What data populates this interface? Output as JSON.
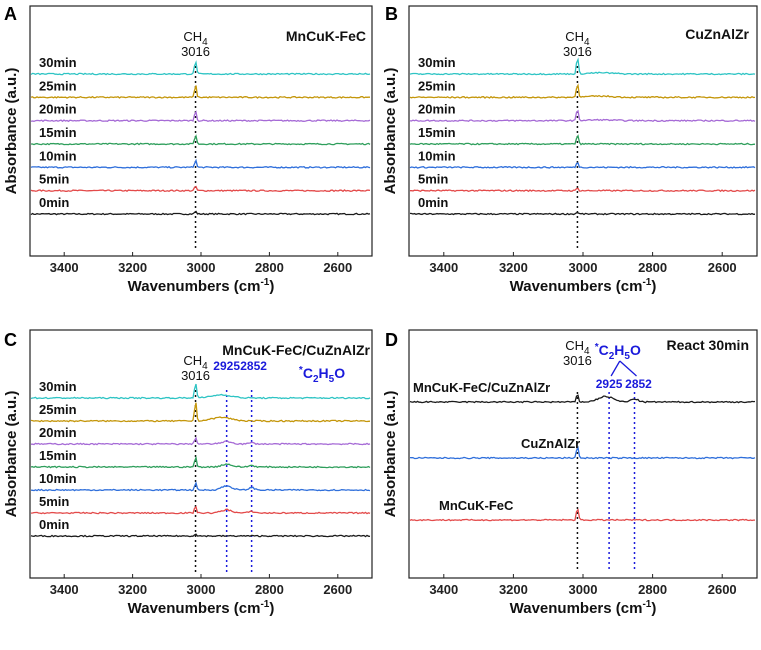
{
  "figure": {
    "panels_order": [
      "A",
      "B",
      "C",
      "D"
    ]
  },
  "chart_data": [
    {
      "panel": "A",
      "type": "line",
      "title": "MnCuK-FeC",
      "xlabel_main": "Wavenumbers (cm",
      "xlabel_sup": "-1",
      "xlabel_close": ")",
      "ylabel": "Absorbance (a.u.)",
      "xlim": [
        3500,
        2500
      ],
      "xticks": [
        "3400",
        "3200",
        "3000",
        "2800",
        "2600"
      ],
      "xtick_values": [
        3400,
        3200,
        3000,
        2800,
        2600
      ],
      "peak_label_main": "CH",
      "peak_label_sub": "4",
      "peak_label_value": "3016",
      "dotted_lines": [
        {
          "x": 3016,
          "color": "#111111"
        }
      ],
      "blue_labels": [],
      "species_label": null,
      "series": [
        {
          "name": "0min",
          "color": "#1a1a1a",
          "peaks": [
            {
              "x": 3016,
              "h": 0.3,
              "w": 4
            }
          ],
          "bumps": []
        },
        {
          "name": "5min",
          "color": "#e34a4a",
          "peaks": [
            {
              "x": 3016,
              "h": 0.5,
              "w": 4
            }
          ],
          "bumps": []
        },
        {
          "name": "10min",
          "color": "#2f6fdb",
          "peaks": [
            {
              "x": 3016,
              "h": 0.8,
              "w": 4
            }
          ],
          "bumps": []
        },
        {
          "name": "15min",
          "color": "#2e9e5b",
          "peaks": [
            {
              "x": 3016,
              "h": 1.0,
              "w": 4
            }
          ],
          "bumps": []
        },
        {
          "name": "20min",
          "color": "#a66bd6",
          "peaks": [
            {
              "x": 3016,
              "h": 1.1,
              "w": 4
            }
          ],
          "bumps": []
        },
        {
          "name": "25min",
          "color": "#c4960a",
          "peaks": [
            {
              "x": 3016,
              "h": 1.4,
              "w": 4
            }
          ],
          "bumps": []
        },
        {
          "name": "30min",
          "color": "#2ec4c4",
          "peaks": [
            {
              "x": 3016,
              "h": 1.5,
              "w": 4
            }
          ],
          "bumps": []
        }
      ]
    },
    {
      "panel": "B",
      "type": "line",
      "title": "CuZnAlZr",
      "xlabel_main": "Wavenumbers (cm",
      "xlabel_sup": "-1",
      "xlabel_close": ")",
      "ylabel": "Absorbance (a.u.)",
      "xlim": [
        3500,
        2500
      ],
      "xticks": [
        "3400",
        "3200",
        "3000",
        "2800",
        "2600"
      ],
      "xtick_values": [
        3400,
        3200,
        3000,
        2800,
        2600
      ],
      "peak_label_main": "CH",
      "peak_label_sub": "4",
      "peak_label_value": "3016",
      "dotted_lines": [
        {
          "x": 3016,
          "color": "#111111"
        }
      ],
      "blue_labels": [],
      "species_label": null,
      "series": [
        {
          "name": "0min",
          "color": "#1a1a1a",
          "peaks": [
            {
              "x": 3016,
              "h": 0.2,
              "w": 4
            }
          ],
          "bumps": []
        },
        {
          "name": "5min",
          "color": "#e34a4a",
          "peaks": [
            {
              "x": 3016,
              "h": 0.3,
              "w": 4
            }
          ],
          "bumps": []
        },
        {
          "name": "10min",
          "color": "#2f6fdb",
          "peaks": [
            {
              "x": 3016,
              "h": 0.6,
              "w": 4
            }
          ],
          "bumps": []
        },
        {
          "name": "15min",
          "color": "#2e9e5b",
          "peaks": [
            {
              "x": 3016,
              "h": 1.0,
              "w": 4
            }
          ],
          "bumps": []
        },
        {
          "name": "20min",
          "color": "#a66bd6",
          "peaks": [
            {
              "x": 3016,
              "h": 1.3,
              "w": 4
            }
          ],
          "bumps": [
            {
              "x": 2950,
              "h": 0.2,
              "w": 50
            }
          ]
        },
        {
          "name": "25min",
          "color": "#c4960a",
          "peaks": [
            {
              "x": 3016,
              "h": 1.6,
              "w": 4
            }
          ],
          "bumps": [
            {
              "x": 2950,
              "h": 0.3,
              "w": 50
            }
          ]
        },
        {
          "name": "30min",
          "color": "#2ec4c4",
          "peaks": [
            {
              "x": 3016,
              "h": 1.8,
              "w": 4
            }
          ],
          "bumps": [
            {
              "x": 2950,
              "h": 0.3,
              "w": 50
            }
          ]
        }
      ]
    },
    {
      "panel": "C",
      "type": "line",
      "title": "MnCuK-FeC/CuZnAlZr",
      "xlabel_main": "Wavenumbers (cm",
      "xlabel_sup": "-1",
      "xlabel_close": ")",
      "ylabel": "Absorbance (a.u.)",
      "xlim": [
        3500,
        2500
      ],
      "xticks": [
        "3400",
        "3200",
        "3000",
        "2800",
        "2600"
      ],
      "xtick_values": [
        3400,
        3200,
        3000,
        2800,
        2600
      ],
      "peak_label_main": "CH",
      "peak_label_sub": "4",
      "peak_label_value": "3016",
      "dotted_lines": [
        {
          "x": 3016,
          "color": "#111111"
        },
        {
          "x": 2925,
          "color": "#1a1adb"
        },
        {
          "x": 2852,
          "color": "#1a1adb"
        }
      ],
      "blue_labels": [
        "2925",
        "2852"
      ],
      "species_label": {
        "star": "*",
        "main": "C",
        "sub1": "2",
        "mid": "H",
        "sub2": "5",
        "end": "O"
      },
      "series": [
        {
          "name": "0min",
          "color": "#1a1a1a",
          "peaks": [
            {
              "x": 3016,
              "h": 0.3,
              "w": 4
            }
          ],
          "bumps": []
        },
        {
          "name": "5min",
          "color": "#e34a4a",
          "peaks": [
            {
              "x": 3016,
              "h": 0.8,
              "w": 4
            }
          ],
          "bumps": [
            {
              "x": 2925,
              "h": 0.8,
              "w": 22
            },
            {
              "x": 2852,
              "h": 0.4,
              "w": 12
            }
          ]
        },
        {
          "name": "10min",
          "color": "#2f6fdb",
          "peaks": [
            {
              "x": 3016,
              "h": 0.8,
              "w": 4
            }
          ],
          "bumps": [
            {
              "x": 2925,
              "h": 1.0,
              "w": 22
            },
            {
              "x": 2852,
              "h": 0.6,
              "w": 12
            }
          ]
        },
        {
          "name": "15min",
          "color": "#2e9e5b",
          "peaks": [
            {
              "x": 3016,
              "h": 1.1,
              "w": 4
            }
          ],
          "bumps": [
            {
              "x": 2925,
              "h": 0.7,
              "w": 22
            },
            {
              "x": 2852,
              "h": 0.4,
              "w": 12
            }
          ]
        },
        {
          "name": "20min",
          "color": "#a66bd6",
          "peaks": [
            {
              "x": 3016,
              "h": 0.8,
              "w": 4
            }
          ],
          "bumps": [
            {
              "x": 2925,
              "h": 0.6,
              "w": 22
            },
            {
              "x": 2852,
              "h": 0.3,
              "w": 12
            }
          ]
        },
        {
          "name": "25min",
          "color": "#c4960a",
          "peaks": [
            {
              "x": 3016,
              "h": 2.2,
              "w": 4
            }
          ],
          "bumps": [
            {
              "x": 2940,
              "h": 0.9,
              "w": 40
            }
          ]
        },
        {
          "name": "30min",
          "color": "#2ec4c4",
          "peaks": [
            {
              "x": 3016,
              "h": 1.8,
              "w": 4
            }
          ],
          "bumps": [
            {
              "x": 2940,
              "h": 0.8,
              "w": 40
            }
          ]
        }
      ]
    },
    {
      "panel": "D",
      "type": "line",
      "title": "React 30min",
      "xlabel_main": "Wavenumbers (cm",
      "xlabel_sup": "-1",
      "xlabel_close": ")",
      "ylabel": "Absorbance (a.u.)",
      "xlim": [
        3500,
        2500
      ],
      "xticks": [
        "3400",
        "3200",
        "3000",
        "2800",
        "2600"
      ],
      "xtick_values": [
        3400,
        3200,
        3000,
        2800,
        2600
      ],
      "peak_label_main": "CH",
      "peak_label_sub": "4",
      "peak_label_value": "3016",
      "dotted_lines": [
        {
          "x": 3016,
          "color": "#111111"
        },
        {
          "x": 2925,
          "color": "#1a1adb"
        },
        {
          "x": 2852,
          "color": "#1a1adb"
        }
      ],
      "blue_labels": [
        "2925",
        "2852"
      ],
      "species_label": {
        "star": "*",
        "main": "C",
        "sub1": "2",
        "mid": "H",
        "sub2": "5",
        "end": "O"
      },
      "series": [
        {
          "name": "MnCuK-FeC",
          "color": "#e34a4a",
          "peaks": [
            {
              "x": 3016,
              "h": 1.4,
              "w": 4
            }
          ],
          "bumps": []
        },
        {
          "name": "CuZnAlZr",
          "color": "#2f6fdb",
          "peaks": [
            {
              "x": 3016,
              "h": 1.4,
              "w": 4
            }
          ],
          "bumps": []
        },
        {
          "name": "MnCuK-FeC/CuZnAlZr",
          "color": "#1a1a1a",
          "peaks": [
            {
              "x": 3016,
              "h": 0.9,
              "w": 4
            }
          ],
          "bumps": [
            {
              "x": 2935,
              "h": 1.4,
              "w": 30
            },
            {
              "x": 2852,
              "h": 0.8,
              "w": 14
            }
          ]
        }
      ]
    }
  ]
}
